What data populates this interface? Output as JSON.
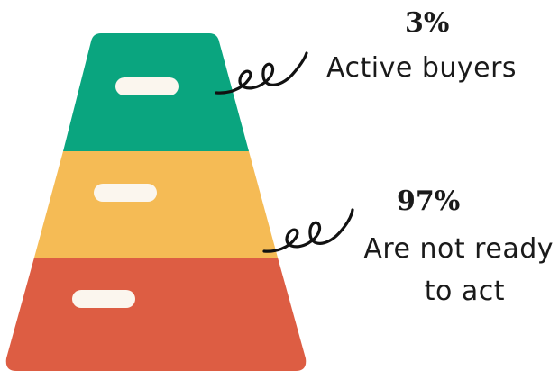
{
  "colors": {
    "top": "#0aa57f",
    "middle": "#f5bb55",
    "bottom": "#dd5d43",
    "pill": "#fbf6ee",
    "ink": "#111111"
  },
  "annotations": {
    "buyers": {
      "stat": "3%",
      "label": "Active buyers"
    },
    "not_ready": {
      "stat": "97%",
      "label_line1": "Are not ready",
      "label_line2": "to act"
    }
  }
}
